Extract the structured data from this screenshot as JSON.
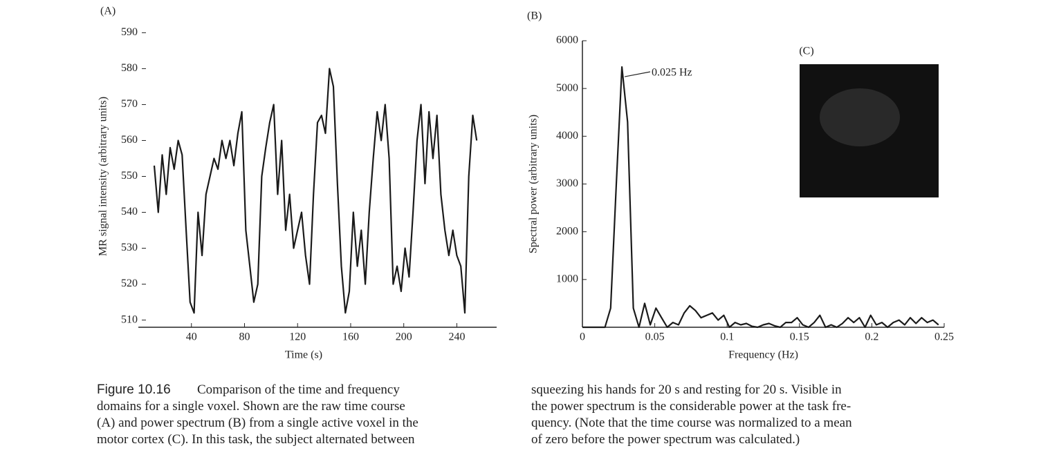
{
  "chart_data": [
    {
      "type": "line",
      "label": "(A)",
      "xlabel": "Time (s)",
      "ylabel": "MR signal intensity (arbitrary units)",
      "x": [
        12,
        15,
        18,
        21,
        24,
        27,
        30,
        33,
        36,
        39,
        42,
        45,
        48,
        51,
        54,
        57,
        60,
        63,
        66,
        69,
        72,
        75,
        78,
        81,
        84,
        87,
        90,
        93,
        96,
        99,
        102,
        105,
        108,
        111,
        114,
        117,
        120,
        123,
        126,
        129,
        132,
        135,
        138,
        141,
        144,
        147,
        150,
        153,
        156,
        159,
        162,
        165,
        168,
        171,
        174,
        177,
        180,
        183,
        186,
        189,
        192,
        195,
        198,
        201,
        204,
        207,
        210,
        213,
        216,
        219,
        222,
        225,
        228,
        231,
        234,
        237,
        240,
        243,
        246,
        249,
        252,
        255
      ],
      "series": [
        {
          "color": "#1a1a1a",
          "values": [
            553,
            540,
            556,
            545,
            558,
            552,
            560,
            556,
            535,
            515,
            512,
            540,
            528,
            545,
            550,
            555,
            552,
            560,
            555,
            560,
            553,
            562,
            568,
            535,
            525,
            515,
            520,
            550,
            558,
            565,
            570,
            545,
            560,
            535,
            545,
            530,
            535,
            540,
            528,
            520,
            545,
            565,
            567,
            562,
            580,
            575,
            548,
            525,
            512,
            518,
            540,
            525,
            535,
            520,
            540,
            555,
            568,
            560,
            570,
            555,
            520,
            525,
            518,
            530,
            522,
            540,
            560,
            570,
            548,
            568,
            555,
            567,
            545,
            535,
            528,
            535,
            528,
            525,
            512,
            550,
            567,
            560
          ]
        }
      ],
      "xlim": [
        0,
        270
      ],
      "xticks": [
        40,
        80,
        120,
        160,
        200,
        240
      ],
      "ylim": [
        508,
        592
      ],
      "yticks": [
        510,
        520,
        530,
        540,
        550,
        560,
        570,
        580,
        590
      ]
    },
    {
      "type": "line",
      "label": "(B)",
      "inset_label": "(C)",
      "xlabel": "Frequency (Hz)",
      "ylabel": "Spectral power (arbitrary units)",
      "annotation": "0.025 Hz",
      "x": [
        0,
        0.0039,
        0.0078,
        0.0117,
        0.0156,
        0.0195,
        0.0234,
        0.0273,
        0.0312,
        0.0352,
        0.0391,
        0.043,
        0.0469,
        0.0508,
        0.0547,
        0.0586,
        0.0625,
        0.0664,
        0.0703,
        0.0742,
        0.0781,
        0.082,
        0.0859,
        0.0898,
        0.0938,
        0.0977,
        0.1016,
        0.1055,
        0.1094,
        0.1133,
        0.1172,
        0.1211,
        0.125,
        0.1289,
        0.1328,
        0.1367,
        0.1406,
        0.1445,
        0.1484,
        0.1523,
        0.1563,
        0.1602,
        0.1641,
        0.168,
        0.1719,
        0.1758,
        0.1797,
        0.1836,
        0.1875,
        0.1914,
        0.1953,
        0.1992,
        0.2031,
        0.207,
        0.2109,
        0.2148,
        0.2188,
        0.2227,
        0.2266,
        0.2305,
        0.2344,
        0.2383,
        0.2422,
        0.2461
      ],
      "series": [
        {
          "color": "#1a1a1a",
          "values": [
            0,
            0,
            0,
            0,
            0,
            400,
            3000,
            5450,
            4300,
            400,
            0,
            500,
            50,
            400,
            200,
            0,
            100,
            50,
            300,
            450,
            350,
            200,
            250,
            300,
            150,
            250,
            0,
            100,
            50,
            80,
            20,
            0,
            50,
            80,
            30,
            0,
            100,
            100,
            200,
            50,
            0,
            100,
            250,
            0,
            50,
            0,
            80,
            200,
            100,
            200,
            0,
            250,
            50,
            100,
            0,
            100,
            150,
            50,
            200,
            80,
            200,
            100,
            150,
            50
          ]
        }
      ],
      "xlim": [
        0,
        0.25
      ],
      "xticks": [
        0,
        0.05,
        0.1,
        0.15,
        0.2,
        0.25
      ],
      "ylim": [
        0,
        6000
      ],
      "yticks": [
        1000,
        2000,
        3000,
        4000,
        5000,
        6000
      ]
    }
  ],
  "caption": {
    "label": "Figure 10.16",
    "left": [
      "Comparison of the time and frequency",
      "domains for a single voxel. Shown are the raw time course",
      "(A) and power spectrum (B) from a single active voxel in the",
      "motor cortex (C). In this task, the subject alternated between"
    ],
    "right": [
      "squeezing his hands for 20 s and resting for 20 s. Visible in",
      "the power spectrum is the considerable power at the task fre-",
      "quency. (Note that the time course was normalized to a mean",
      "of zero before the power spectrum was calculated.)"
    ]
  }
}
